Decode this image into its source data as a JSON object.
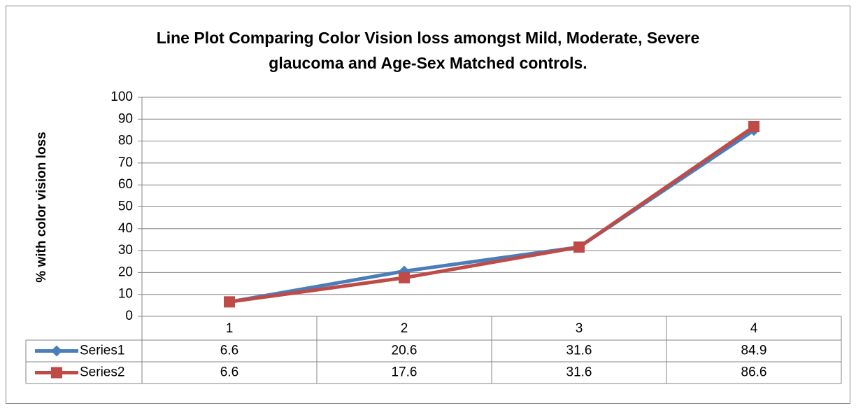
{
  "chart_data": {
    "type": "line",
    "title": [
      "Line Plot Comparing Color Vision loss amongst Mild, Moderate, Severe",
      "glaucoma and Age-Sex Matched controls."
    ],
    "y_label": "% with color vision loss",
    "categories": [
      "1",
      "2",
      "3",
      "4"
    ],
    "series": [
      {
        "name": "Series1",
        "color": "#4a7ebb",
        "marker": "diamond",
        "values": [
          6.6,
          20.6,
          31.6,
          84.9
        ]
      },
      {
        "name": "Series2",
        "color": "#be4b48",
        "marker": "square",
        "values": [
          6.6,
          17.6,
          31.6,
          86.6
        ]
      }
    ],
    "ylim": [
      0,
      100
    ],
    "yticks": [
      0,
      10,
      20,
      30,
      40,
      50,
      60,
      70,
      80,
      90,
      100
    ],
    "grid": true,
    "data_table": true
  }
}
